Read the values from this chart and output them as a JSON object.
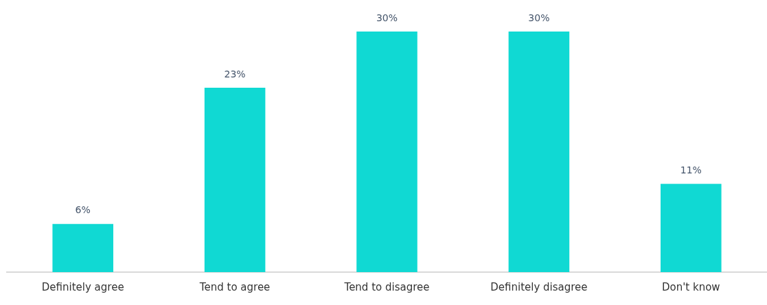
{
  "chart_data": {
    "type": "bar",
    "categories": [
      "Definitely agree",
      "Tend to agree",
      "Tend to disagree",
      "Definitely disagree",
      "Don't know"
    ],
    "values": [
      6,
      23,
      30,
      30,
      11
    ],
    "value_labels": [
      "6%",
      "23%",
      "30%",
      "30%",
      "11%"
    ],
    "color": "#10d9d3",
    "legend": false
  }
}
